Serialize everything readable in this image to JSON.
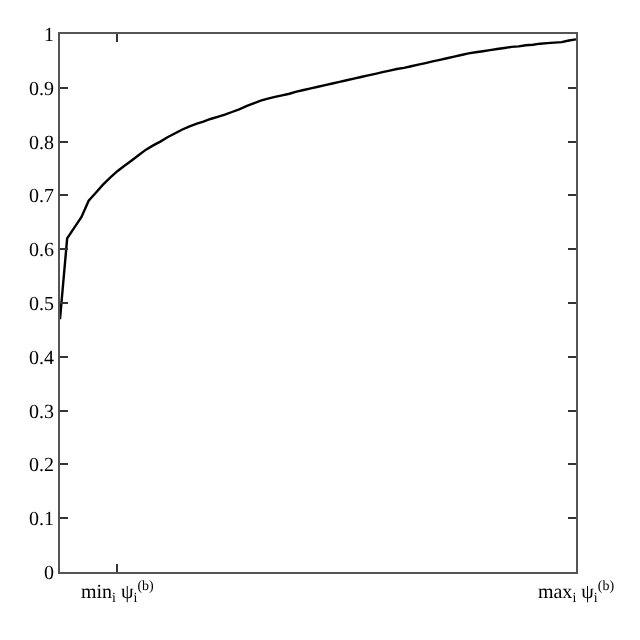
{
  "chart_data": {
    "type": "line",
    "categories": [
      null,
      null,
      null,
      null,
      null,
      null,
      null,
      null,
      "min$_{i}$ ψ$_{i}$$^{(b)}$",
      null,
      null,
      null,
      null,
      null,
      null,
      null,
      null,
      null,
      null,
      null,
      null,
      null,
      null,
      null,
      null,
      null,
      null,
      null,
      null,
      null,
      null,
      null,
      null,
      null,
      null,
      null,
      null,
      null,
      null,
      null,
      null,
      null,
      null,
      null,
      null,
      null,
      null,
      null,
      null,
      null,
      null,
      null,
      null,
      null,
      null,
      null,
      null,
      null,
      null,
      null,
      null,
      null,
      null,
      null,
      null,
      null,
      null,
      null,
      null,
      null,
      null,
      null,
      "max$_{i}$ ψ$_{i}$$^{(b)}$"
    ],
    "values": [
      0.47,
      0.62,
      0.64,
      0.66,
      0.69,
      0.705,
      0.72,
      0.733,
      0.745,
      0.755,
      0.765,
      0.775,
      0.785,
      0.793,
      0.8,
      0.808,
      0.815,
      0.822,
      0.828,
      0.833,
      0.837,
      0.842,
      0.846,
      0.85,
      0.855,
      0.86,
      0.866,
      0.871,
      0.876,
      0.88,
      0.883,
      0.886,
      0.889,
      0.893,
      0.896,
      0.899,
      0.902,
      0.905,
      0.908,
      0.911,
      0.914,
      0.917,
      0.92,
      0.923,
      0.926,
      0.929,
      0.932,
      0.935,
      0.937,
      0.94,
      0.943,
      0.946,
      0.949,
      0.952,
      0.955,
      0.958,
      0.961,
      0.964,
      0.966,
      0.968,
      0.97,
      0.972,
      0.974,
      0.976,
      0.977,
      0.979,
      0.98,
      0.982,
      0.983,
      0.984,
      0.985,
      0.988,
      0.99
    ],
    "color": "#000000",
    "ylim": [
      0,
      1
    ],
    "yticks": [
      0,
      0.1,
      0.2,
      0.3,
      0.4,
      0.5,
      0.6,
      0.7,
      0.8,
      0.9,
      1
    ],
    "marker": "none",
    "line_style": "solid",
    "legend": false
  }
}
